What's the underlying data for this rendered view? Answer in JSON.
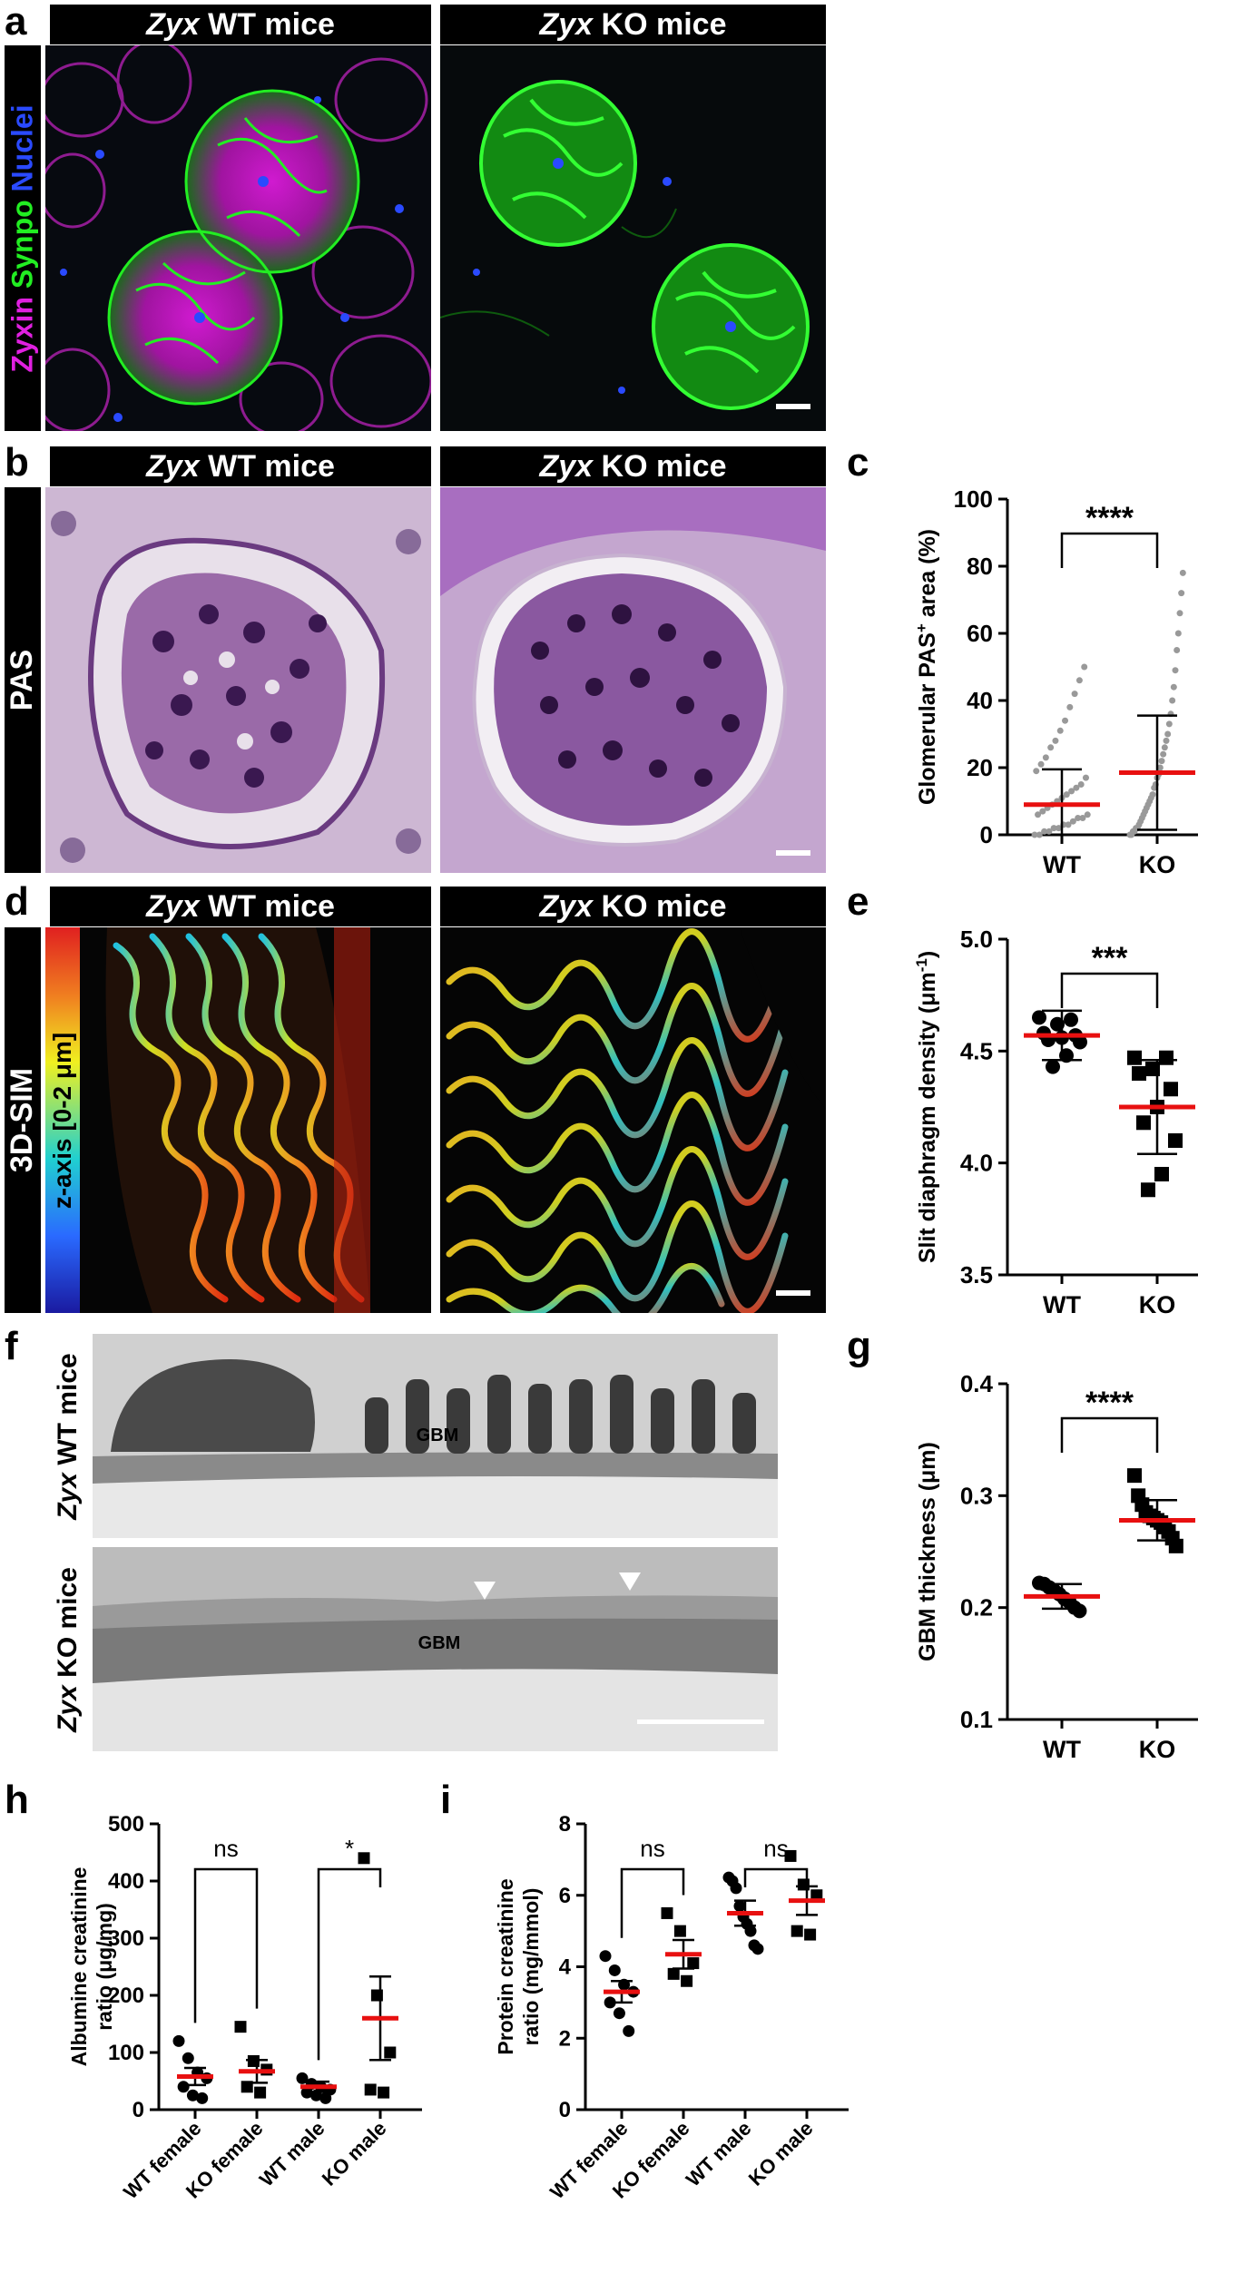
{
  "panels": {
    "a": {
      "letter": "a",
      "header_left": "WT mice",
      "header_right": "KO mice",
      "gene": "Zyx",
      "stain_zyxin": "Zyxin",
      "stain_synpo": "Synpo",
      "stain_nuclei": "Nuclei",
      "colors": {
        "zyxin": "#e020e0",
        "synpo": "#22ee22",
        "nuclei": "#2a4aff"
      }
    },
    "b": {
      "letter": "b",
      "header_left": "WT mice",
      "header_right": "KO mice",
      "gene": "Zyx",
      "side_label": "PAS"
    },
    "c": {
      "letter": "c"
    },
    "d": {
      "letter": "d",
      "header_left": "WT mice",
      "header_right": "KO mice",
      "gene": "Zyx",
      "side_label": "3D-SIM",
      "zaxis_label": "z-axis [0-2 μm]"
    },
    "e": {
      "letter": "e"
    },
    "f": {
      "letter": "f",
      "label_wt": "WT mice",
      "label_ko": "KO mice",
      "gene": "Zyx",
      "gbm_label": "GBM"
    },
    "g": {
      "letter": "g"
    },
    "h": {
      "letter": "h"
    },
    "i": {
      "letter": "i"
    }
  },
  "chart_data": [
    {
      "id": "c",
      "type": "scatter",
      "categories": [
        "WT",
        "KO"
      ],
      "ylabel_main": "Glomerular PAS",
      "ylabel_sup": "+",
      "ylabel_tail": " area (%)",
      "ylim": [
        0,
        100
      ],
      "yticks": [
        0,
        20,
        40,
        60,
        80,
        100
      ],
      "means": [
        9,
        18.5
      ],
      "sd": [
        10.5,
        17
      ],
      "significance": "****",
      "points_wt": [
        0,
        0,
        1,
        1,
        2,
        2,
        3,
        3,
        4,
        5,
        5,
        6,
        6,
        7,
        8,
        9,
        10,
        11,
        12,
        13,
        14,
        15,
        17,
        19,
        21,
        23,
        26,
        28,
        31,
        34,
        38,
        42,
        46,
        50
      ],
      "points_ko": [
        0,
        0,
        1,
        1,
        2,
        2,
        3,
        4,
        5,
        6,
        7,
        8,
        9,
        10,
        11,
        12,
        14,
        15,
        17,
        18,
        20,
        22,
        24,
        26,
        28,
        30,
        33,
        36,
        40,
        44,
        49,
        55,
        60,
        66,
        72,
        78
      ]
    },
    {
      "id": "e",
      "type": "scatter",
      "categories": [
        "WT",
        "KO"
      ],
      "ylabel_main": "Slit diaphragm density (μm",
      "ylabel_sup": "-1",
      "ylabel_tail": ")",
      "ylim": [
        3.5,
        5.0
      ],
      "yticks": [
        "3.5",
        "4.0",
        "4.5",
        "5.0"
      ],
      "means": [
        4.57,
        4.25
      ],
      "sd": [
        0.11,
        0.21
      ],
      "significance": "***",
      "points_wt": [
        4.65,
        4.64,
        4.62,
        4.58,
        4.57,
        4.56,
        4.55,
        4.54,
        4.48,
        4.43
      ],
      "points_ko": [
        4.47,
        4.47,
        4.42,
        4.4,
        4.33,
        4.25,
        4.18,
        4.1,
        3.95,
        3.88
      ]
    },
    {
      "id": "g",
      "type": "scatter",
      "categories": [
        "WT",
        "KO"
      ],
      "ylabel_main": "GBM thickness (μm)",
      "ylabel_sup": "",
      "ylabel_tail": "",
      "ylim": [
        0.1,
        0.4
      ],
      "yticks": [
        "0.1",
        "0.2",
        "0.3",
        "0.4"
      ],
      "means": [
        0.21,
        0.278
      ],
      "sd": [
        0.011,
        0.018
      ],
      "significance": "****",
      "points_wt": [
        0.222,
        0.221,
        0.218,
        0.215,
        0.212,
        0.208,
        0.205,
        0.2,
        0.197
      ],
      "points_ko": [
        0.318,
        0.3,
        0.292,
        0.285,
        0.282,
        0.28,
        0.278,
        0.276,
        0.272,
        0.268,
        0.262,
        0.255
      ]
    },
    {
      "id": "h",
      "type": "scatter",
      "categories": [
        "WT female",
        "KO female",
        "WT male",
        "KO male"
      ],
      "ylabel_line1": "Albumine creatinine",
      "ylabel_line2": "ratio (μg/mg)",
      "ylim": [
        0,
        500
      ],
      "yticks": [
        0,
        100,
        200,
        300,
        400,
        500
      ],
      "means": [
        58,
        67,
        40,
        160
      ],
      "sem": [
        15,
        20,
        9,
        73
      ],
      "comparisons": [
        {
          "pair": [
            0,
            1
          ],
          "label": "ns"
        },
        {
          "pair": [
            2,
            3
          ],
          "label": "*"
        }
      ],
      "points": [
        [
          120,
          90,
          65,
          55,
          40,
          25,
          20
        ],
        [
          145,
          85,
          70,
          40,
          30
        ],
        [
          55,
          45,
          40,
          35,
          30,
          25,
          20
        ],
        [
          440,
          200,
          100,
          35,
          30
        ]
      ],
      "markers": [
        "circle",
        "square",
        "circle",
        "square"
      ]
    },
    {
      "id": "i",
      "type": "scatter",
      "categories": [
        "WT female",
        "KO female",
        "WT male",
        "KO male"
      ],
      "ylabel_line1": "Protein creatinine",
      "ylabel_line2": "ratio (mg/mmol)",
      "ylim": [
        0,
        8
      ],
      "yticks": [
        0,
        2,
        4,
        6,
        8
      ],
      "means": [
        3.3,
        4.35,
        5.5,
        5.85
      ],
      "sem": [
        0.3,
        0.4,
        0.35,
        0.4
      ],
      "comparisons": [
        {
          "pair": [
            0,
            1
          ],
          "label": "ns"
        },
        {
          "pair": [
            2,
            3
          ],
          "label": "ns"
        }
      ],
      "points": [
        [
          4.3,
          3.9,
          3.5,
          3.3,
          3.0,
          2.7,
          2.2
        ],
        [
          5.5,
          5.0,
          4.1,
          3.8,
          3.6
        ],
        [
          6.5,
          6.4,
          6.2,
          5.7,
          5.4,
          5.2,
          5.0,
          4.6,
          4.5
        ],
        [
          7.1,
          6.3,
          6.0,
          5.0,
          4.9
        ]
      ],
      "markers": [
        "circle",
        "square",
        "circle",
        "square"
      ]
    }
  ]
}
